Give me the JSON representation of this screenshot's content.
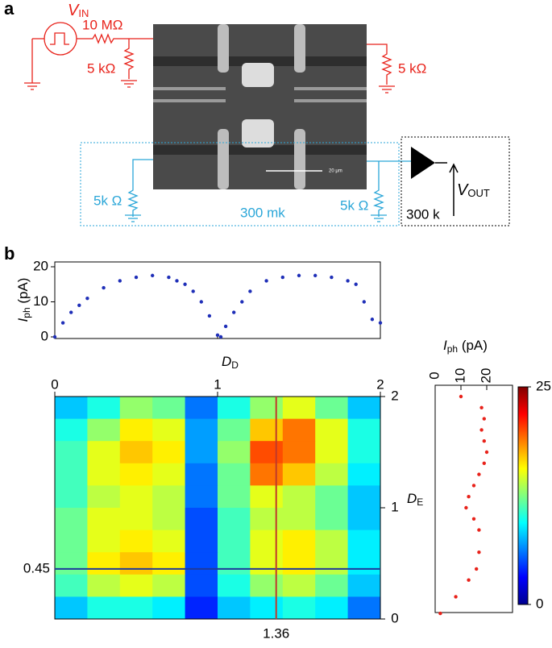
{
  "panel_a": {
    "label": "a",
    "vin": {
      "symbol": "V",
      "subscript": "IN"
    },
    "r_source": "10 MΩ",
    "r_left": "5 kΩ",
    "r_right": "5 kΩ",
    "r_blue_left": "5k Ω",
    "r_blue_right": "5k Ω",
    "temperature": "300 mk",
    "vout": {
      "symbol": "V",
      "subscript": "OUT"
    },
    "amp_gain": "300 k",
    "scale_bar": "20 μm"
  },
  "panel_b": {
    "label": "b"
  },
  "chart_data": [
    {
      "type": "scatter",
      "color": "#1f2fb8",
      "ylabel": {
        "symbol": "I",
        "subscript": "ph",
        "unit": " (pA)"
      },
      "xlabel": {
        "symbol": "D",
        "subscript": "D"
      },
      "x": [
        0,
        0.05,
        0.1,
        0.15,
        0.2,
        0.3,
        0.4,
        0.5,
        0.6,
        0.7,
        0.75,
        0.8,
        0.85,
        0.9,
        0.95,
        1.0,
        1.02,
        1.05,
        1.1,
        1.15,
        1.2,
        1.3,
        1.4,
        1.5,
        1.6,
        1.7,
        1.8,
        1.85,
        1.9,
        1.95,
        2.0
      ],
      "y": [
        0,
        4,
        7,
        9,
        11,
        14,
        16,
        17,
        17.5,
        17,
        16,
        15,
        13,
        10,
        6,
        0.5,
        0,
        3,
        7,
        10,
        13,
        16,
        17,
        17.5,
        17.5,
        17,
        16,
        15,
        10,
        5,
        4
      ],
      "xlim": [
        0,
        2
      ],
      "ylim": [
        0,
        20
      ],
      "yticks": [
        0,
        10,
        20
      ]
    },
    {
      "type": "heatmap",
      "xlim": [
        0,
        2
      ],
      "ylim": [
        0,
        2
      ],
      "xticks": [
        0,
        1,
        2
      ],
      "yticks": [
        0,
        1,
        2
      ],
      "ylabel": {
        "symbol": "D",
        "subscript": "E"
      },
      "zlim": [
        0,
        25
      ],
      "colorbar_ticks": [
        0,
        25
      ],
      "z": [
        [
          8,
          10,
          13,
          12,
          6,
          10,
          13,
          15,
          12,
          8
        ],
        [
          10,
          13,
          16,
          15,
          7,
          12,
          17,
          19,
          15,
          10
        ],
        [
          11,
          15,
          17,
          16,
          7,
          13,
          20,
          19,
          15,
          10
        ],
        [
          11,
          15,
          16,
          15,
          6,
          12,
          19,
          17,
          14,
          9
        ],
        [
          11,
          14,
          15,
          14,
          6,
          12,
          15,
          14,
          12,
          8
        ],
        [
          12,
          15,
          15,
          14,
          5,
          11,
          14,
          14,
          12,
          8
        ],
        [
          12,
          15,
          16,
          15,
          5,
          11,
          15,
          16,
          14,
          9
        ],
        [
          12,
          16,
          17,
          16,
          5,
          11,
          15,
          16,
          14,
          9
        ],
        [
          11,
          14,
          15,
          14,
          5,
          10,
          13,
          14,
          12,
          8
        ],
        [
          8,
          10,
          10,
          9,
          4,
          8,
          9,
          10,
          9,
          6
        ]
      ],
      "hline": 0.45,
      "hline_color": "#1f3a9a",
      "vline": 1.36,
      "vline_color": "#c0392b"
    },
    {
      "type": "scatter",
      "color": "#e8221a",
      "xlabel": {
        "symbol": "I",
        "subscript": "ph",
        "unit": " (pA)"
      },
      "x": [
        2,
        8,
        13,
        16,
        17,
        17,
        15,
        12,
        13,
        15,
        17,
        19,
        20,
        19,
        18,
        19,
        18,
        10
      ],
      "y": [
        0.05,
        0.2,
        0.35,
        0.45,
        0.6,
        0.8,
        0.9,
        1.0,
        1.1,
        1.2,
        1.3,
        1.4,
        1.5,
        1.6,
        1.7,
        1.8,
        1.9,
        2.0
      ],
      "xlim": [
        0,
        30
      ],
      "ylim": [
        0,
        2
      ],
      "xticks": [
        0,
        10,
        20
      ]
    }
  ]
}
